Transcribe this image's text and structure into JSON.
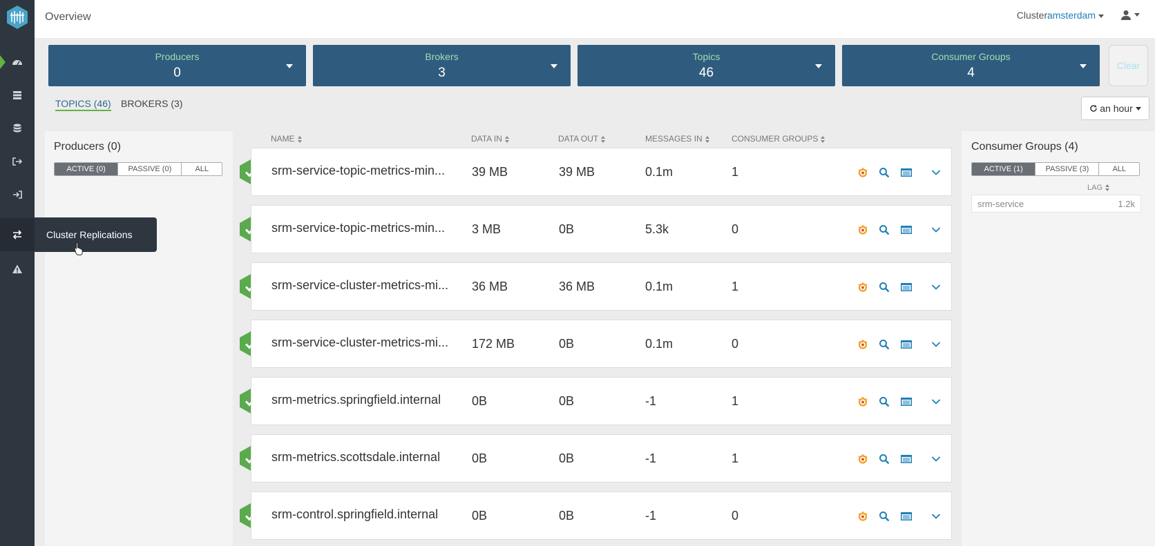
{
  "header": {
    "title": "Overview",
    "cluster_label": "Cluster:",
    "cluster_value": "amsterdam"
  },
  "sidebar": {
    "items": [
      {
        "icon": "dashboard-icon",
        "active": true
      },
      {
        "icon": "server-icon"
      },
      {
        "icon": "database-icon"
      },
      {
        "icon": "sign-out-icon"
      },
      {
        "icon": "sign-in-icon"
      },
      {
        "icon": "exchange-icon",
        "tooltip": "Cluster Replications"
      },
      {
        "icon": "warning-icon"
      }
    ],
    "tooltip": "Cluster Replications"
  },
  "summary": {
    "cards": [
      {
        "label": "Producers",
        "value": "0"
      },
      {
        "label": "Brokers",
        "value": "3"
      },
      {
        "label": "Topics",
        "value": "46"
      },
      {
        "label": "Consumer Groups",
        "value": "4"
      }
    ],
    "clear_label": "Clear"
  },
  "tabs": {
    "topics": "TOPICS (46)",
    "brokers": "BROKERS (3)"
  },
  "time_range": "an hour",
  "producers_panel": {
    "title": "Producers (0)",
    "filters": [
      "ACTIVE (0)",
      "PASSIVE (0)",
      "ALL"
    ]
  },
  "table": {
    "columns": [
      "NAME",
      "DATA IN",
      "DATA OUT",
      "MESSAGES IN",
      "CONSUMER GROUPS"
    ],
    "rows": [
      {
        "name": "srm-service-topic-metrics-min...",
        "data_in": "39 MB",
        "data_out": "39 MB",
        "messages_in": "0.1m",
        "consumer_groups": "1"
      },
      {
        "name": "srm-service-topic-metrics-min...",
        "data_in": "3 MB",
        "data_out": "0B",
        "messages_in": "5.3k",
        "consumer_groups": "0"
      },
      {
        "name": "srm-service-cluster-metrics-mi...",
        "data_in": "36 MB",
        "data_out": "36 MB",
        "messages_in": "0.1m",
        "consumer_groups": "1"
      },
      {
        "name": "srm-service-cluster-metrics-mi...",
        "data_in": "172 MB",
        "data_out": "0B",
        "messages_in": "0.1m",
        "consumer_groups": "0"
      },
      {
        "name": "srm-metrics.springfield.internal",
        "data_in": "0B",
        "data_out": "0B",
        "messages_in": "-1",
        "consumer_groups": "1"
      },
      {
        "name": "srm-metrics.scottsdale.internal",
        "data_in": "0B",
        "data_out": "0B",
        "messages_in": "-1",
        "consumer_groups": "1"
      },
      {
        "name": "srm-control.springfield.internal",
        "data_in": "0B",
        "data_out": "0B",
        "messages_in": "-1",
        "consumer_groups": "0"
      }
    ]
  },
  "consumer_panel": {
    "title": "Consumer Groups (4)",
    "filters": [
      "ACTIVE (1)",
      "PASSIVE (3)",
      "ALL"
    ],
    "lag_header": "LAG",
    "groups": [
      {
        "name": "srm-service",
        "lag": "1.2k"
      }
    ]
  },
  "colors": {
    "sidebar": "#2e3640",
    "card": "#2f5b7e",
    "card_label": "#9fdfb0",
    "status_ok": "#5aaa4e",
    "link": "#1f7fb8"
  }
}
